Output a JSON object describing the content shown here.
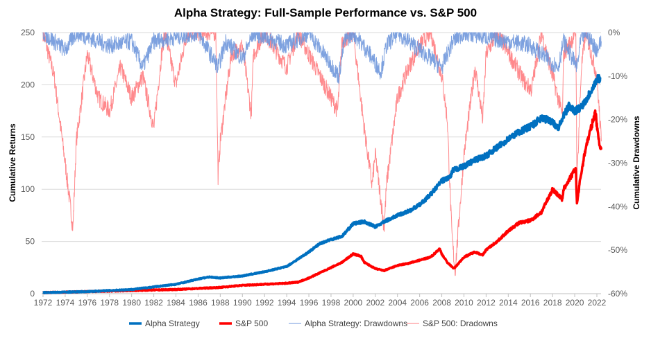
{
  "chart_data": {
    "type": "line",
    "title": "Alpha Strategy: Full-Sample Performance vs. S&P 500",
    "ylabel": "Cumulative Returns",
    "y2label": "Cumulative Drawdowns",
    "xlim": [
      1972,
      2022.5
    ],
    "ylim": [
      0,
      250
    ],
    "y2lim": [
      -60,
      0
    ],
    "x_ticks": [
      "1972",
      "1974",
      "1976",
      "1978",
      "1980",
      "1982",
      "1984",
      "1986",
      "1988",
      "1990",
      "1992",
      "1994",
      "1996",
      "1998",
      "2000",
      "2002",
      "2004",
      "2006",
      "2008",
      "2010",
      "2012",
      "2014",
      "2016",
      "2018",
      "2020",
      "2022"
    ],
    "y_ticks": [
      "0",
      "50",
      "100",
      "150",
      "200",
      "250"
    ],
    "y2_ticks": [
      "0%",
      "-10%",
      "-20%",
      "-30%",
      "-40%",
      "-50%",
      "-60%"
    ],
    "legend_position": "bottom",
    "series": [
      {
        "name": "Alpha Strategy",
        "axis": "left",
        "color": "#0070C0",
        "width": 3.5,
        "points": [
          [
            1972,
            1
          ],
          [
            1976,
            2
          ],
          [
            1980,
            4
          ],
          [
            1984,
            9
          ],
          [
            1986,
            14
          ],
          [
            1987,
            16
          ],
          [
            1988,
            15
          ],
          [
            1990,
            17
          ],
          [
            1992,
            21
          ],
          [
            1994,
            26
          ],
          [
            1996,
            40
          ],
          [
            1997,
            48
          ],
          [
            1998,
            52
          ],
          [
            1999,
            55
          ],
          [
            2000,
            67
          ],
          [
            2001,
            69
          ],
          [
            2002,
            64
          ],
          [
            2003,
            70
          ],
          [
            2004,
            75
          ],
          [
            2005,
            79
          ],
          [
            2006,
            85
          ],
          [
            2007,
            95
          ],
          [
            2008,
            108
          ],
          [
            2008.8,
            112
          ],
          [
            2009,
            118
          ],
          [
            2010,
            122
          ],
          [
            2011,
            128
          ],
          [
            2012,
            132
          ],
          [
            2013,
            140
          ],
          [
            2014,
            148
          ],
          [
            2015,
            155
          ],
          [
            2016,
            160
          ],
          [
            2017,
            168
          ],
          [
            2018,
            165
          ],
          [
            2018.5,
            158
          ],
          [
            2019,
            170
          ],
          [
            2019.5,
            180
          ],
          [
            2020,
            175
          ],
          [
            2020.5,
            178
          ],
          [
            2021,
            185
          ],
          [
            2022,
            205
          ],
          [
            2022.3,
            207
          ]
        ]
      },
      {
        "name": "S&P 500",
        "axis": "left",
        "color": "#FF0000",
        "width": 3.5,
        "points": [
          [
            1972,
            1
          ],
          [
            1980,
            3
          ],
          [
            1984,
            4
          ],
          [
            1988,
            6
          ],
          [
            1990,
            8
          ],
          [
            1994,
            10
          ],
          [
            1995,
            11
          ],
          [
            1996,
            15
          ],
          [
            1998,
            25
          ],
          [
            1999,
            30
          ],
          [
            2000,
            38
          ],
          [
            2000.7,
            36
          ],
          [
            2001,
            30
          ],
          [
            2002,
            24
          ],
          [
            2002.8,
            22
          ],
          [
            2003,
            23
          ],
          [
            2004,
            27
          ],
          [
            2005,
            29
          ],
          [
            2006,
            32
          ],
          [
            2007,
            35
          ],
          [
            2007.8,
            43
          ],
          [
            2008,
            38
          ],
          [
            2008.5,
            30
          ],
          [
            2009.1,
            24
          ],
          [
            2010,
            35
          ],
          [
            2011,
            40
          ],
          [
            2011.7,
            37
          ],
          [
            2012,
            42
          ],
          [
            2013,
            50
          ],
          [
            2014,
            60
          ],
          [
            2015,
            68
          ],
          [
            2016,
            70
          ],
          [
            2017,
            78
          ],
          [
            2018,
            100
          ],
          [
            2018.9,
            90
          ],
          [
            2019,
            100
          ],
          [
            2020.1,
            120
          ],
          [
            2020.2,
            86
          ],
          [
            2020.5,
            110
          ],
          [
            2021,
            140
          ],
          [
            2021.9,
            175
          ],
          [
            2022,
            160
          ],
          [
            2022.3,
            140
          ],
          [
            2022.4,
            138
          ]
        ]
      },
      {
        "name": "Alpha Strategy: Drawdowns",
        "axis": "right",
        "color": "#6F97DC",
        "width": 1,
        "points": [
          [
            1972,
            0
          ],
          [
            1974,
            -4
          ],
          [
            1975,
            0
          ],
          [
            1978,
            -3
          ],
          [
            1980,
            -2
          ],
          [
            1981,
            -8
          ],
          [
            1982,
            -2
          ],
          [
            1986,
            0
          ],
          [
            1987.8,
            -8
          ],
          [
            1988.5,
            -2
          ],
          [
            1990,
            -6
          ],
          [
            1991,
            0
          ],
          [
            1994,
            -3
          ],
          [
            1996,
            0
          ],
          [
            1998.7,
            -10
          ],
          [
            1999.2,
            -2
          ],
          [
            2000,
            0
          ],
          [
            2001.5,
            -5
          ],
          [
            2002.5,
            -9
          ],
          [
            2003,
            -3
          ],
          [
            2004,
            0
          ],
          [
            2008,
            -8
          ],
          [
            2009,
            -2
          ],
          [
            2010,
            0
          ],
          [
            2016,
            -3
          ],
          [
            2018.5,
            -8
          ],
          [
            2019,
            -2
          ],
          [
            2020.2,
            -8
          ],
          [
            2020.6,
            -1
          ],
          [
            2021,
            0
          ],
          [
            2022,
            -4
          ],
          [
            2022.4,
            -2
          ]
        ]
      },
      {
        "name": "S&P 500: Dradowns",
        "axis": "right",
        "color": "#FF7C80",
        "width": 1,
        "points": [
          [
            1972,
            0
          ],
          [
            1973,
            -10
          ],
          [
            1974,
            -30
          ],
          [
            1974.7,
            -45
          ],
          [
            1975,
            -25
          ],
          [
            1976,
            -5
          ],
          [
            1977,
            -15
          ],
          [
            1978,
            -18
          ],
          [
            1979,
            -8
          ],
          [
            1980,
            -15
          ],
          [
            1981,
            -10
          ],
          [
            1982,
            -22
          ],
          [
            1982.7,
            -5
          ],
          [
            1983,
            0
          ],
          [
            1984,
            -12
          ],
          [
            1985,
            0
          ],
          [
            1987.6,
            0
          ],
          [
            1987.8,
            -33
          ],
          [
            1988,
            -25
          ],
          [
            1989,
            -5
          ],
          [
            1990,
            -3
          ],
          [
            1990.8,
            -19
          ],
          [
            1991,
            -5
          ],
          [
            1992,
            0
          ],
          [
            1994,
            -8
          ],
          [
            1995,
            0
          ],
          [
            1998.6,
            -18
          ],
          [
            1999,
            -2
          ],
          [
            2000,
            0
          ],
          [
            2001,
            -22
          ],
          [
            2001.7,
            -35
          ],
          [
            2002,
            -28
          ],
          [
            2002.8,
            -45
          ],
          [
            2003,
            -35
          ],
          [
            2004,
            -15
          ],
          [
            2005,
            -8
          ],
          [
            2006,
            -3
          ],
          [
            2007,
            0
          ],
          [
            2008,
            -10
          ],
          [
            2008.5,
            -20
          ],
          [
            2008.9,
            -46
          ],
          [
            2009.2,
            -55
          ],
          [
            2010,
            -28
          ],
          [
            2011,
            -8
          ],
          [
            2011.7,
            -20
          ],
          [
            2012,
            -5
          ],
          [
            2013,
            0
          ],
          [
            2015.6,
            -12
          ],
          [
            2016.1,
            -13
          ],
          [
            2017,
            0
          ],
          [
            2018.9,
            -19
          ],
          [
            2019,
            -5
          ],
          [
            2020.1,
            0
          ],
          [
            2020.2,
            -34
          ],
          [
            2020.6,
            -8
          ],
          [
            2021,
            0
          ],
          [
            2022,
            -10
          ],
          [
            2022.4,
            -25
          ]
        ]
      }
    ]
  }
}
